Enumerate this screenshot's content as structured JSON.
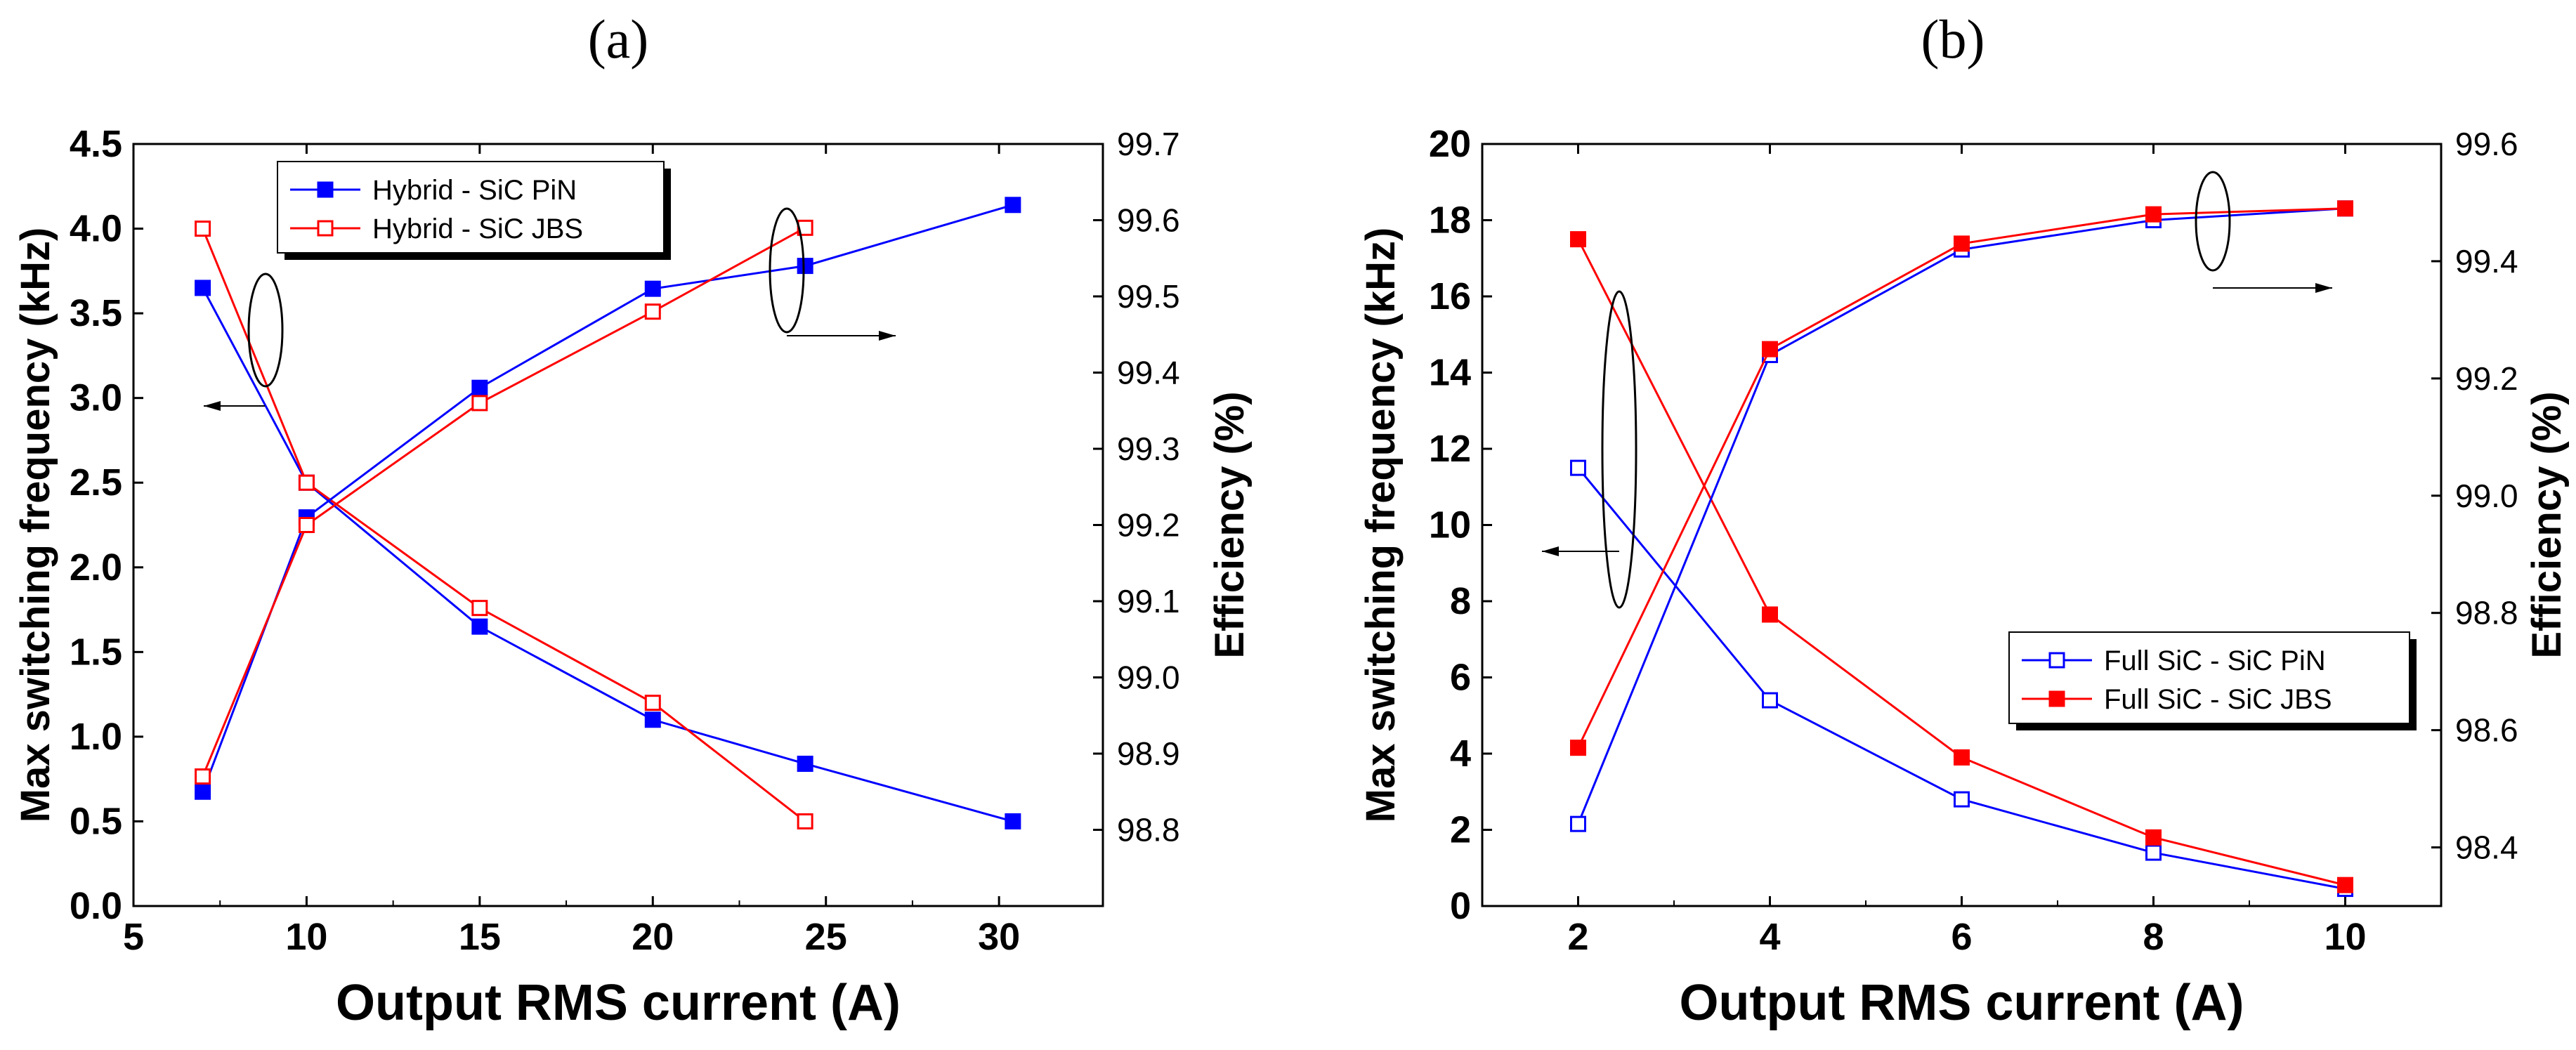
{
  "chart_data": [
    {
      "type": "line",
      "panel": "(a)",
      "xlabel": "Output RMS current (A)",
      "ylabel": "Max switching frequency (kHz)",
      "y2label": "Efficiency (%)",
      "xlim": [
        5,
        33
      ],
      "ylim": [
        0,
        4.5
      ],
      "y2lim": [
        98.7,
        99.7
      ],
      "xticks": [
        5,
        10,
        15,
        20,
        25,
        30
      ],
      "yticks": [
        0.0,
        0.5,
        1.0,
        1.5,
        2.0,
        2.5,
        3.0,
        3.5,
        4.0,
        4.5
      ],
      "y2ticks": [
        98.8,
        98.9,
        99.0,
        99.1,
        99.2,
        99.3,
        99.4,
        99.5,
        99.6,
        99.7
      ],
      "xtick_labels": [
        "5",
        "10",
        "15",
        "20",
        "25",
        "30"
      ],
      "ytick_labels": [
        "0.0",
        "0.5",
        "1.0",
        "1.5",
        "2.0",
        "2.5",
        "3.0",
        "3.5",
        "4.0",
        "4.5"
      ],
      "y2tick_labels": [
        "98.8",
        "98.9",
        "99.0",
        "99.1",
        "99.2",
        "99.3",
        "99.4",
        "99.5",
        "99.6",
        "99.7"
      ],
      "legend": [
        "Hybrid - SiC PiN",
        "Hybrid - SiC JBS"
      ],
      "series": [
        {
          "name": "Hybrid - SiC PiN",
          "axis": "left",
          "color": "#0000ff",
          "marker": "filled",
          "x": [
            7,
            10,
            15,
            20,
            24.4,
            30.4
          ],
          "y": [
            3.65,
            2.5,
            1.65,
            1.1,
            0.84,
            0.5
          ]
        },
        {
          "name": "Hybrid - SiC JBS",
          "axis": "left",
          "color": "#ff0000",
          "marker": "open",
          "x": [
            7,
            10,
            15,
            20,
            24.4
          ],
          "y": [
            4.0,
            2.5,
            1.76,
            1.2,
            0.5
          ]
        },
        {
          "name": "Hybrid - SiC PiN",
          "axis": "right",
          "color": "#0000ff",
          "marker": "filled",
          "x": [
            7,
            10,
            15,
            20,
            24.4,
            30.4
          ],
          "y": [
            98.85,
            99.21,
            99.38,
            99.51,
            99.54,
            99.62
          ]
        },
        {
          "name": "Hybrid - SiC JBS",
          "axis": "right",
          "color": "#ff0000",
          "marker": "open",
          "x": [
            7,
            10,
            15,
            20,
            24.4
          ],
          "y": [
            98.87,
            99.2,
            99.36,
            99.48,
            99.59
          ]
        }
      ]
    },
    {
      "type": "line",
      "panel": "(b)",
      "xlabel": "Output RMS current (A)",
      "ylabel": "Max switching frequency (kHz)",
      "y2label": "Efficiency (%)",
      "xlim": [
        1,
        11
      ],
      "ylim": [
        0,
        20
      ],
      "y2lim": [
        98.3,
        99.6
      ],
      "xticks": [
        2,
        4,
        6,
        8,
        10
      ],
      "yticks": [
        0,
        2,
        4,
        6,
        8,
        10,
        12,
        14,
        16,
        18,
        20
      ],
      "y2ticks": [
        98.4,
        98.6,
        98.8,
        99.0,
        99.2,
        99.4,
        99.6
      ],
      "xtick_labels": [
        "2",
        "4",
        "6",
        "8",
        "10"
      ],
      "ytick_labels": [
        "0",
        "2",
        "4",
        "6",
        "8",
        "10",
        "12",
        "14",
        "16",
        "18",
        "20"
      ],
      "y2tick_labels": [
        "98.4",
        "98.6",
        "98.8",
        "99.0",
        "99.2",
        "99.4",
        "99.6"
      ],
      "legend": [
        "Full SiC - SiC PiN",
        "Full SiC - SiC JBS"
      ],
      "series": [
        {
          "name": "Full SiC - SiC PiN",
          "axis": "left",
          "color": "#0000ff",
          "marker": "open",
          "x": [
            2,
            4,
            6,
            8,
            10
          ],
          "y": [
            11.5,
            5.4,
            2.8,
            1.4,
            0.45
          ]
        },
        {
          "name": "Full SiC - SiC JBS",
          "axis": "left",
          "color": "#ff0000",
          "marker": "filled",
          "x": [
            2,
            4,
            6,
            8,
            10
          ],
          "y": [
            17.5,
            7.65,
            3.9,
            1.8,
            0.55
          ]
        },
        {
          "name": "Full SiC - SiC PiN",
          "axis": "right",
          "color": "#0000ff",
          "marker": "open",
          "x": [
            2,
            4,
            6,
            8,
            10
          ],
          "y": [
            98.44,
            99.24,
            99.42,
            99.47,
            99.49
          ]
        },
        {
          "name": "Full SiC - SiC JBS",
          "axis": "right",
          "color": "#ff0000",
          "marker": "filled",
          "x": [
            2,
            4,
            6,
            8,
            10
          ],
          "y": [
            98.57,
            99.25,
            99.43,
            99.48,
            99.49
          ]
        }
      ]
    }
  ]
}
